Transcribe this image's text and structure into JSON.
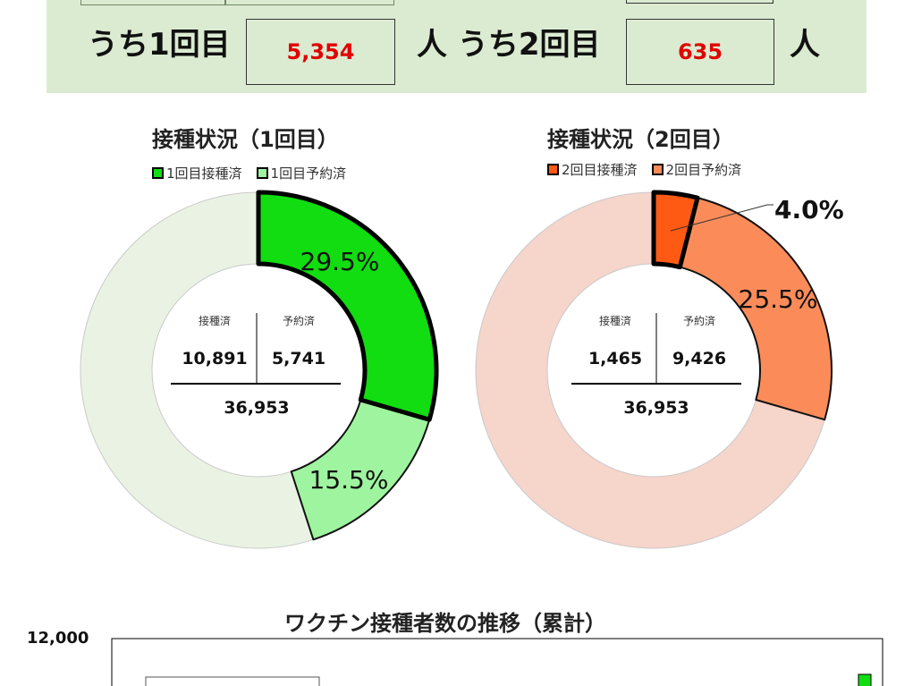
{
  "banner": {
    "dose1_label": "うち1回目",
    "dose1_value": "5,354",
    "dose2_label": "人 うち2回目",
    "dose2_value": "635",
    "unit": "人",
    "value_color": "#e00000"
  },
  "chart_data": [
    {
      "type": "pie",
      "title": "接種状況（1回目）",
      "legend": [
        "1回目接種済",
        "1回目予約済"
      ],
      "legend_colors": [
        "#11dd11",
        "#9ff59f"
      ],
      "slices": [
        {
          "name": "1回目接種済",
          "value": 10891,
          "label": "29.5%",
          "color": "#11dd11"
        },
        {
          "name": "1回目予約済",
          "value": 5741,
          "label": "15.5%",
          "color": "#9ff59f"
        },
        {
          "name": "",
          "value": 20321,
          "label": "",
          "color": "#eaf3e3"
        }
      ],
      "center": {
        "done_label": "接種済",
        "reserved_label": "予約済",
        "done": "10,891",
        "reserved": "5,741",
        "total": "36,953"
      }
    },
    {
      "type": "pie",
      "title": "接種状況（2回目）",
      "legend": [
        "2回目接種済",
        "2回目予約済"
      ],
      "legend_colors": [
        "#ff5a14",
        "#fb8c5a"
      ],
      "slices": [
        {
          "name": "2回目接種済",
          "value": 1465,
          "label": "4.0%",
          "color": "#ff5a14"
        },
        {
          "name": "2回目予約済",
          "value": 9426,
          "label": "25.5%",
          "color": "#fb8c5a"
        },
        {
          "name": "",
          "value": 26062,
          "label": "",
          "color": "#f6d5cb"
        }
      ],
      "center": {
        "done_label": "接種済",
        "reserved_label": "予約済",
        "done": "1,465",
        "reserved": "9,426",
        "total": "36,953"
      }
    },
    {
      "type": "line",
      "title": "ワクチン接種者数の推移（累計）",
      "y_tick_top": "12,000",
      "ylim": [
        0,
        12000
      ]
    }
  ]
}
